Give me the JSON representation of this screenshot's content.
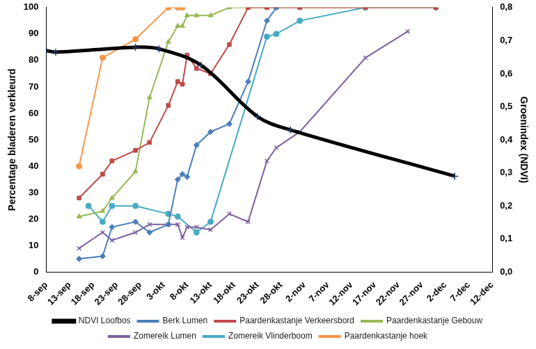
{
  "chart_data": {
    "type": "line",
    "y_label": "Percentage bladeren verkleurd",
    "y2_label": "Groenindex (NDVI)",
    "xlim": [
      251,
      346
    ],
    "xticks": [
      {
        "value": 251,
        "label": "8-sep"
      },
      {
        "value": 256,
        "label": "13-sep"
      },
      {
        "value": 261,
        "label": "18-sep"
      },
      {
        "value": 266,
        "label": "23-sep"
      },
      {
        "value": 271,
        "label": "28-sep"
      },
      {
        "value": 276,
        "label": "3-okt"
      },
      {
        "value": 281,
        "label": "8-okt"
      },
      {
        "value": 286,
        "label": "13-okt"
      },
      {
        "value": 291,
        "label": "18-okt"
      },
      {
        "value": 296,
        "label": "23-okt"
      },
      {
        "value": 301,
        "label": "28-okt"
      },
      {
        "value": 306,
        "label": "2-nov"
      },
      {
        "value": 311,
        "label": "7-nov"
      },
      {
        "value": 316,
        "label": "12-nov"
      },
      {
        "value": 321,
        "label": "17-nov"
      },
      {
        "value": 326,
        "label": "22-nov"
      },
      {
        "value": 331,
        "label": "27-nov"
      },
      {
        "value": 336,
        "label": "2-dec"
      },
      {
        "value": 341,
        "label": "7-dec"
      },
      {
        "value": 346,
        "label": "12-dec"
      }
    ],
    "ylim": [
      0,
      100
    ],
    "yticks": [
      0,
      10,
      20,
      30,
      40,
      50,
      60,
      70,
      80,
      90,
      100
    ],
    "y2lim": [
      0,
      0.8
    ],
    "y2ticks": [
      {
        "value": 0,
        "label": "0,0"
      },
      {
        "value": 0.1,
        "label": "0,1"
      },
      {
        "value": 0.2,
        "label": "0,2"
      },
      {
        "value": 0.3,
        "label": "0,3"
      },
      {
        "value": 0.4,
        "label": "0,4"
      },
      {
        "value": 0.5,
        "label": "0,5"
      },
      {
        "value": 0.6,
        "label": "0,6"
      },
      {
        "value": 0.7,
        "label": "0,7"
      },
      {
        "value": 0.8,
        "label": "0,8"
      }
    ],
    "grid": false,
    "legend": "bottom",
    "series": [
      {
        "name": "Berk Lumen",
        "color": "#4a7ebb",
        "marker": "diamond",
        "line_style": "solid",
        "x": [
          258,
          263,
          265,
          270,
          273,
          277,
          279,
          280,
          281,
          283,
          286,
          290,
          294,
          298,
          300
        ],
        "values": [
          5,
          6,
          17,
          19,
          15,
          18,
          35,
          37,
          36,
          48,
          53,
          56,
          72,
          95,
          100
        ]
      },
      {
        "name": "Paardenkastanje Verkeersbord",
        "color": "#be4b48",
        "marker": "square",
        "line_style": "solid",
        "x": [
          258,
          263,
          265,
          270,
          273,
          277,
          279,
          280,
          281,
          283,
          286,
          290,
          294,
          298,
          300,
          305,
          319,
          334
        ],
        "values": [
          28,
          37,
          42,
          46,
          49,
          63,
          72,
          71,
          82,
          77,
          75,
          86,
          100,
          100,
          100,
          100,
          100,
          100
        ]
      },
      {
        "name": "Paardenkastanje Gebouw",
        "color": "#98b954",
        "marker": "triangle",
        "line_style": "solid",
        "x": [
          258,
          263,
          265,
          270,
          273,
          277,
          279,
          280,
          281,
          283,
          286,
          290,
          294,
          298,
          300,
          305,
          319,
          334
        ],
        "values": [
          21,
          23,
          28,
          38,
          66,
          87,
          93,
          93,
          97,
          97,
          97,
          100,
          100,
          100,
          100,
          100,
          100,
          100
        ]
      },
      {
        "name": "Zomereik Lumen",
        "color": "#7d60a0",
        "marker": "x",
        "line_style": "solid",
        "x": [
          258,
          263,
          265,
          270,
          273,
          277,
          279,
          280,
          281,
          283,
          286,
          290,
          294,
          298,
          300,
          305,
          319,
          328
        ],
        "values": [
          9,
          15,
          12,
          15,
          18,
          18,
          18,
          13,
          17,
          17,
          16,
          22,
          19,
          42,
          47,
          53,
          81,
          91
        ]
      },
      {
        "name": "Zomereik Vlinderboom",
        "color": "#46aac5",
        "marker": "circle",
        "line_style": "solid",
        "x": [
          260,
          263,
          265,
          270,
          277,
          279,
          283,
          286,
          298,
          300,
          305,
          319,
          334
        ],
        "values": [
          25,
          19,
          25,
          25,
          22,
          21,
          15,
          19,
          89,
          90,
          95,
          100,
          100
        ]
      },
      {
        "name": "Paardenkastanje hoek",
        "color": "#f79646",
        "marker": "circle",
        "line_style": "solid",
        "x": [
          258,
          263,
          270,
          277,
          279,
          280
        ],
        "values": [
          40,
          81,
          88,
          100,
          100,
          100
        ]
      },
      {
        "name": "NDVI Loofbos",
        "color": "#000000",
        "marker": "cross",
        "line_style": "solid",
        "axis": "y2",
        "x": [
          251,
          253,
          270,
          275,
          284,
          296,
          303,
          338
        ],
        "values": [
          0.67,
          0.665,
          0.68,
          0.675,
          0.625,
          0.47,
          0.43,
          0.29
        ]
      }
    ]
  }
}
